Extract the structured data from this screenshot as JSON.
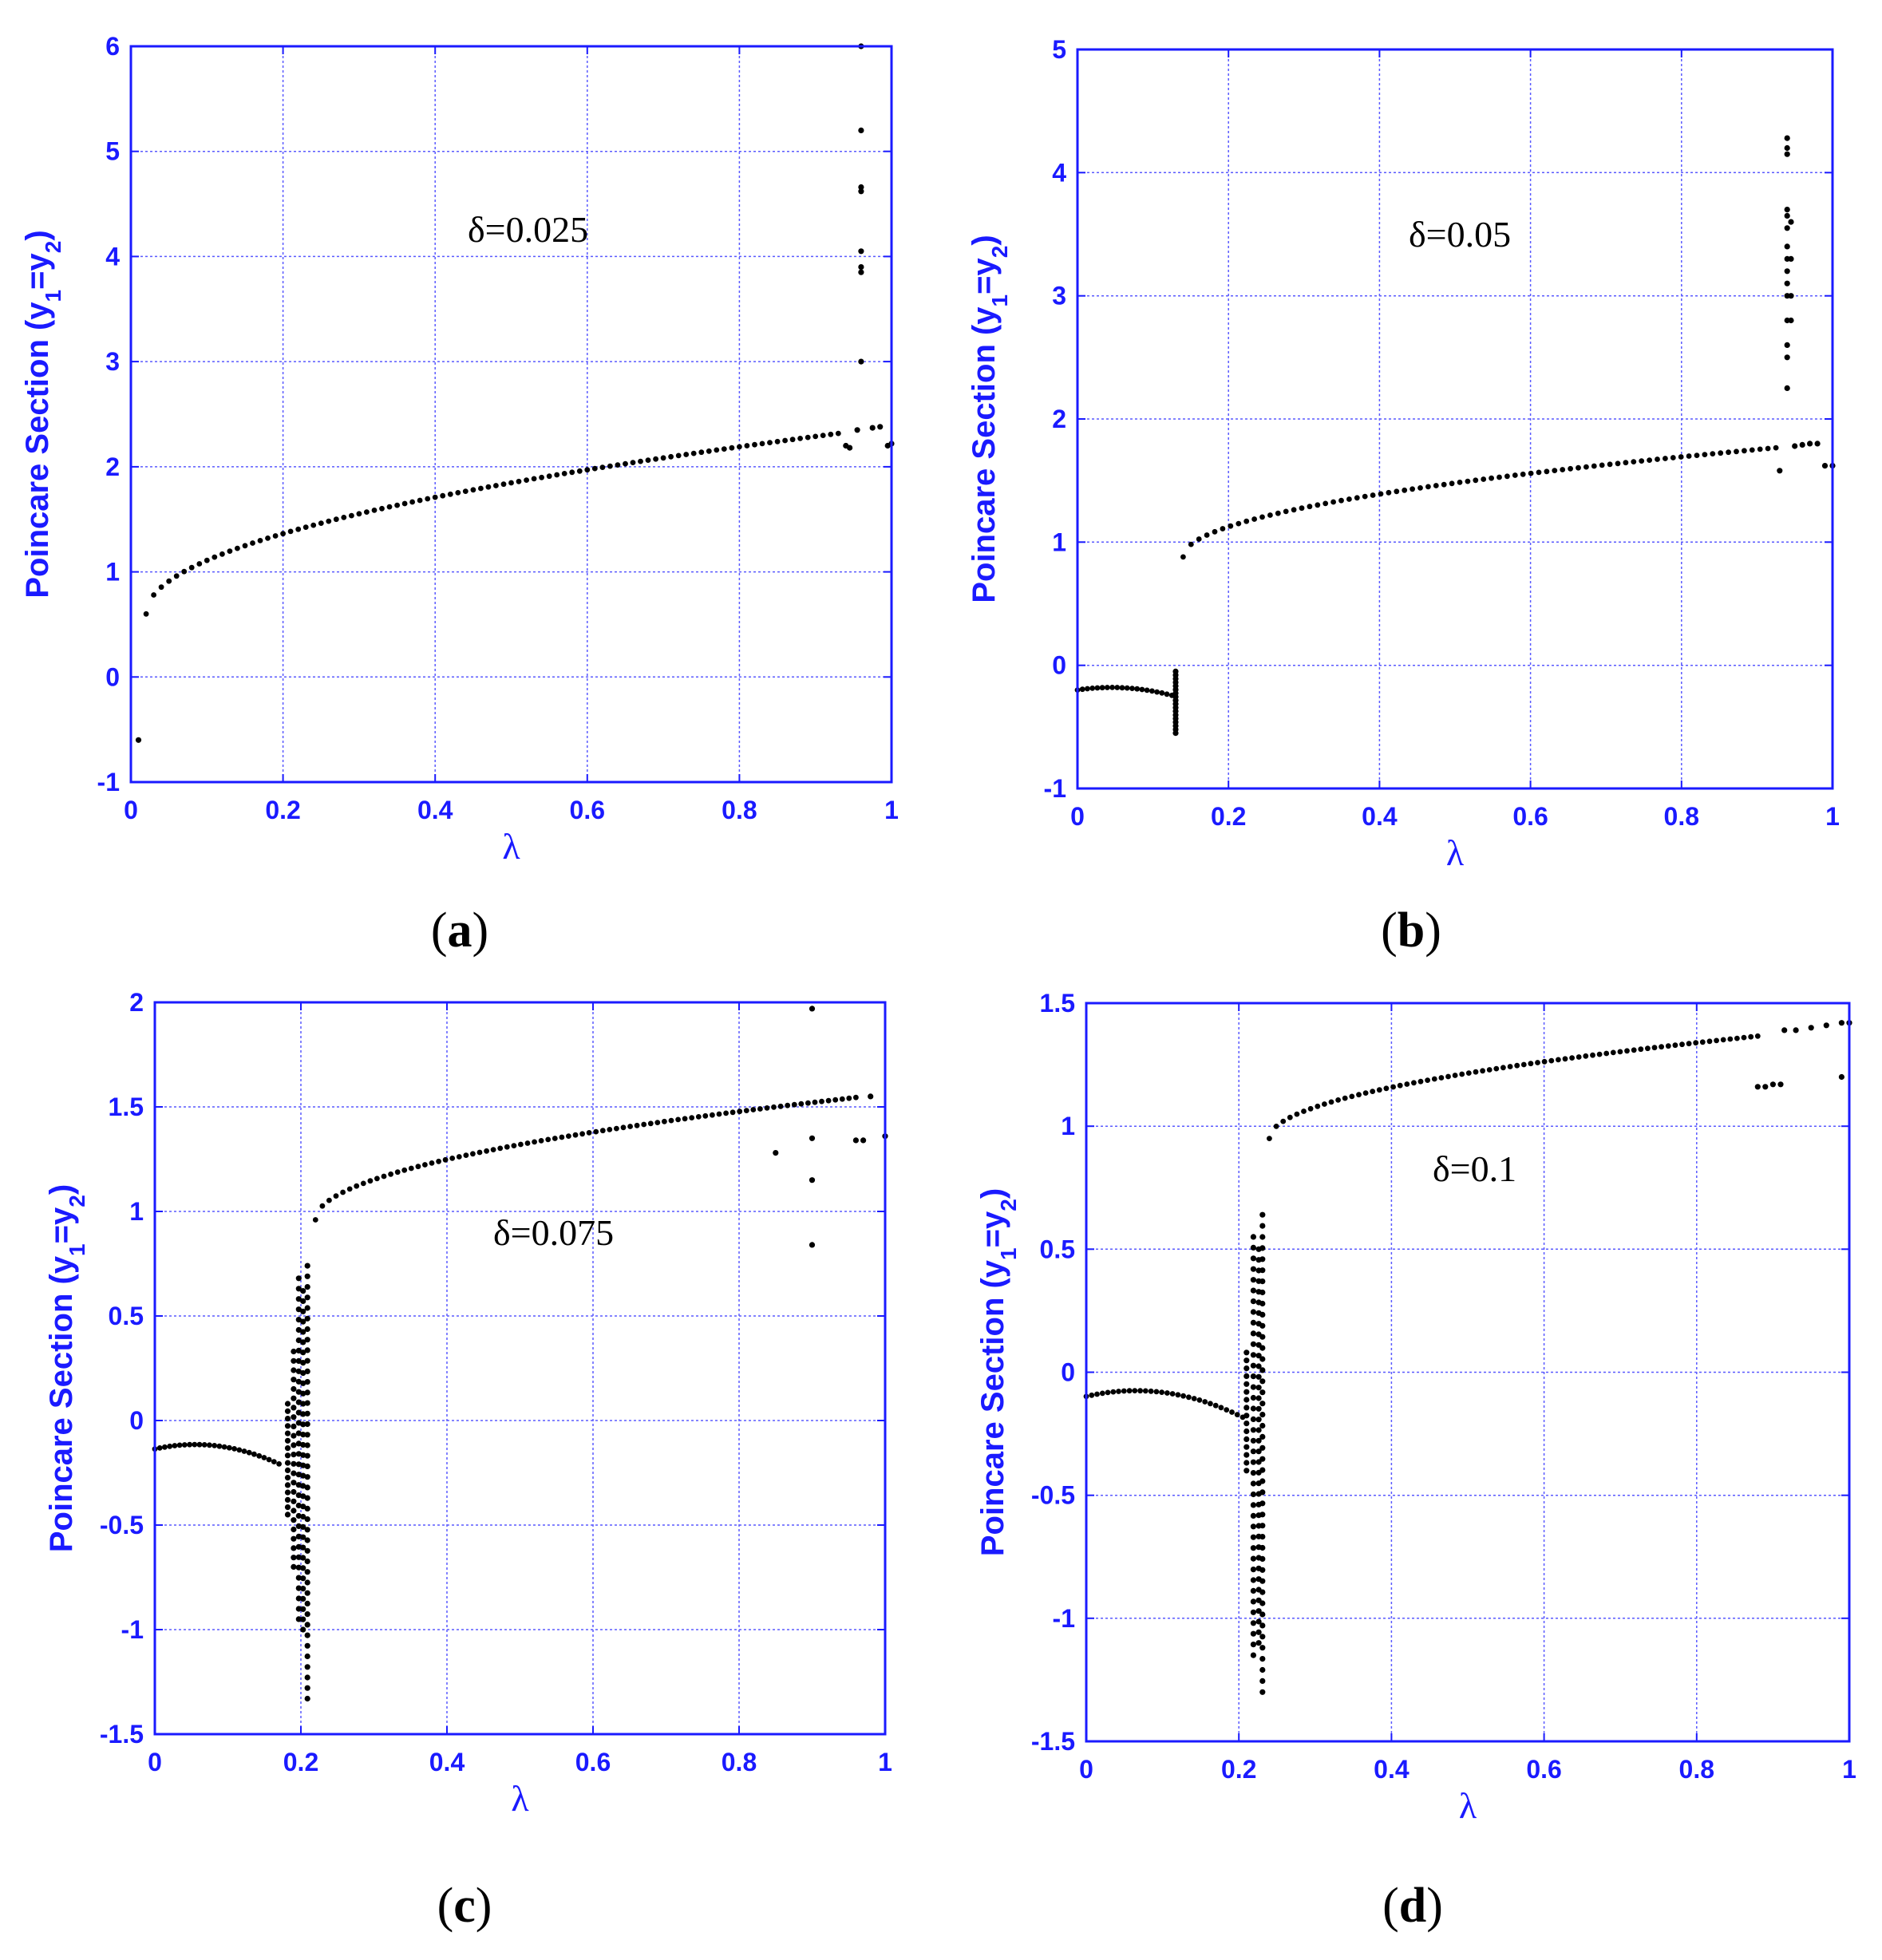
{
  "chart_data": [
    {
      "type": "scatter",
      "panel": "a",
      "caption": "(a)",
      "caption_open": "(",
      "caption_letter": "a",
      "caption_close": ")",
      "annotation": "δ=0.025",
      "xlabel": "λ",
      "ylabel": "Poincare Section (y1=y2)",
      "ylabel_parts": {
        "main": "Poincare Section (y",
        "s1": "1",
        "mid": "=y",
        "s2": "2",
        "end": ")"
      },
      "xlim": [
        0,
        1
      ],
      "ylim": [
        -1,
        6
      ],
      "xticks": [
        0,
        0.2,
        0.4,
        0.6,
        0.8,
        1
      ],
      "xtick_labels": [
        "0",
        "0.2",
        "0.4",
        "0.6",
        "0.8",
        "1"
      ],
      "yticks": [
        -1,
        0,
        1,
        2,
        3,
        4,
        5,
        6
      ],
      "ytick_labels": [
        "-1",
        "0",
        "1",
        "2",
        "3",
        "4",
        "5",
        "6"
      ],
      "grid": true,
      "main_branch": {
        "x_start": 0.02,
        "x_end": 0.93,
        "n": 92,
        "y_fn": "sqrt",
        "y0": 0.6,
        "coef": 1.8,
        "offset": 0.02
      },
      "points": [
        [
          0.01,
          -0.6
        ],
        [
          0.94,
          2.2
        ],
        [
          0.945,
          2.18
        ],
        [
          0.955,
          2.35
        ],
        [
          0.96,
          3.0
        ],
        [
          0.96,
          3.85
        ],
        [
          0.96,
          3.9
        ],
        [
          0.96,
          4.05
        ],
        [
          0.96,
          4.62
        ],
        [
          0.96,
          4.66
        ],
        [
          0.96,
          5.2
        ],
        [
          0.96,
          6.0
        ],
        [
          0.975,
          2.37
        ],
        [
          0.985,
          2.38
        ],
        [
          0.995,
          2.2
        ],
        [
          1.0,
          2.22
        ]
      ]
    },
    {
      "type": "scatter",
      "panel": "b",
      "caption": "(b)",
      "caption_open": "(",
      "caption_letter": "b",
      "caption_close": ")",
      "annotation": "δ=0.05",
      "xlabel": "λ",
      "ylabel": "Poincare Section (y1=y2)",
      "ylabel_parts": {
        "main": "Poincare Section (y",
        "s1": "1",
        "mid": "=y",
        "s2": "2",
        "end": ")"
      },
      "xlim": [
        0,
        1
      ],
      "ylim": [
        -1,
        5
      ],
      "xticks": [
        0,
        0.2,
        0.4,
        0.6,
        0.8,
        1
      ],
      "xtick_labels": [
        "0",
        "0.2",
        "0.4",
        "0.6",
        "0.8",
        "1"
      ],
      "yticks": [
        -1,
        0,
        1,
        2,
        3,
        4,
        5
      ],
      "ytick_labels": [
        "-1",
        "0",
        "1",
        "2",
        "3",
        "4",
        "5"
      ],
      "grid": true,
      "low_branch": {
        "x_start": 0.0,
        "x_end": 0.125,
        "n": 20,
        "y_fn": "parabola",
        "peak_x": 0.045,
        "peak_y": -0.18,
        "curv": 10.0
      },
      "chaos_bands": [
        {
          "x": 0.13,
          "y_min": -0.55,
          "y_max": -0.05,
          "n": 18
        }
      ],
      "main_branch": {
        "x_start": 0.14,
        "x_end": 0.925,
        "n": 76,
        "y_fn": "sqrt",
        "y0": 0.88,
        "coef": 1.0,
        "offset": 0.14
      },
      "points": [
        [
          0.93,
          1.58
        ],
        [
          0.94,
          2.25
        ],
        [
          0.94,
          2.5
        ],
        [
          0.94,
          2.6
        ],
        [
          0.94,
          2.8
        ],
        [
          0.94,
          3.0
        ],
        [
          0.94,
          3.1
        ],
        [
          0.94,
          3.2
        ],
        [
          0.94,
          3.3
        ],
        [
          0.94,
          3.4
        ],
        [
          0.94,
          3.55
        ],
        [
          0.94,
          3.65
        ],
        [
          0.94,
          3.7
        ],
        [
          0.94,
          4.15
        ],
        [
          0.94,
          4.2
        ],
        [
          0.94,
          4.28
        ],
        [
          0.945,
          2.8
        ],
        [
          0.945,
          3.0
        ],
        [
          0.945,
          3.3
        ],
        [
          0.945,
          3.6
        ],
        [
          0.95,
          1.78
        ],
        [
          0.96,
          1.79
        ],
        [
          0.97,
          1.8
        ],
        [
          0.98,
          1.8
        ],
        [
          0.99,
          1.62
        ],
        [
          1.0,
          1.62
        ]
      ]
    },
    {
      "type": "scatter",
      "panel": "c",
      "caption": "(c)",
      "caption_open": "(",
      "caption_letter": "c",
      "caption_close": ")",
      "annotation": "δ=0.075",
      "xlabel": "λ",
      "ylabel": "Poincare Section (y1=y2)",
      "ylabel_parts": {
        "main": "Poincare Section (y",
        "s1": "1",
        "mid": "=y",
        "s2": "2",
        "end": ")"
      },
      "xlim": [
        0,
        1
      ],
      "ylim": [
        -1.5,
        2
      ],
      "xticks": [
        0,
        0.2,
        0.4,
        0.6,
        0.8,
        1
      ],
      "xtick_labels": [
        "0",
        "0.2",
        "0.4",
        "0.6",
        "0.8",
        "1"
      ],
      "yticks": [
        -1.5,
        -1,
        -0.5,
        0,
        0.5,
        1,
        1.5,
        2
      ],
      "ytick_labels": [
        "-1.5",
        "-1",
        "-0.5",
        "0",
        "0.5",
        "1",
        "1.5",
        "2"
      ],
      "grid": true,
      "low_branch": {
        "x_start": 0.0,
        "x_end": 0.17,
        "n": 26,
        "y_fn": "parabola",
        "peak_x": 0.055,
        "peak_y": -0.115,
        "curv": 7.0
      },
      "chaos_bands": [
        {
          "x": 0.182,
          "y_min": -0.45,
          "y_max": 0.08,
          "n": 16
        },
        {
          "x": 0.19,
          "y_min": -0.7,
          "y_max": 0.33,
          "n": 24
        },
        {
          "x": 0.197,
          "y_min": -0.95,
          "y_max": 0.68,
          "n": 34
        },
        {
          "x": 0.203,
          "y_min": -1.0,
          "y_max": 0.62,
          "n": 34
        },
        {
          "x": 0.209,
          "y_min": -1.33,
          "y_max": 0.74,
          "n": 42
        }
      ],
      "main_branch": {
        "x_start": 0.22,
        "x_end": 0.96,
        "n": 80,
        "y_fn": "sqrt",
        "y0": 0.96,
        "coef": 0.68,
        "offset": 0.22
      },
      "points": [
        [
          0.85,
          1.28
        ],
        [
          0.9,
          0.84
        ],
        [
          0.9,
          1.15
        ],
        [
          0.9,
          1.35
        ],
        [
          0.9,
          1.97
        ],
        [
          0.96,
          1.34
        ],
        [
          0.97,
          1.34
        ],
        [
          0.98,
          1.55
        ],
        [
          1.0,
          1.36
        ]
      ]
    },
    {
      "type": "scatter",
      "panel": "d",
      "caption": "(d)",
      "caption_open": "(",
      "caption_letter": "d",
      "caption_close": ")",
      "annotation": "δ=0.1",
      "xlabel": "λ",
      "ylabel": "Poincare Section (y1=y2)",
      "ylabel_parts": {
        "main": "Poincare Section (y",
        "s1": "1",
        "mid": "=y",
        "s2": "2",
        "end": ")"
      },
      "xlim": [
        0,
        1
      ],
      "ylim": [
        -1.5,
        1.5
      ],
      "xticks": [
        0,
        0.2,
        0.4,
        0.6,
        0.8,
        1
      ],
      "xtick_labels": [
        "0",
        "0.2",
        "0.4",
        "0.6",
        "0.8",
        "1"
      ],
      "yticks": [
        -1.5,
        -1,
        -0.5,
        0,
        0.5,
        1,
        1.5
      ],
      "ytick_labels": [
        "-1.5",
        "-1",
        "-0.5",
        "0",
        "0.5",
        "1",
        "1.5"
      ],
      "grid": true,
      "low_branch": {
        "x_start": 0.0,
        "x_end": 0.205,
        "n": 30,
        "y_fn": "parabola",
        "peak_x": 0.065,
        "peak_y": -0.075,
        "curv": 5.5
      },
      "chaos_bands": [
        {
          "x": 0.21,
          "y_min": -0.4,
          "y_max": 0.08,
          "n": 16
        },
        {
          "x": 0.219,
          "y_min": -1.15,
          "y_max": 0.55,
          "n": 40
        },
        {
          "x": 0.226,
          "y_min": -1.1,
          "y_max": 0.5,
          "n": 38
        },
        {
          "x": 0.231,
          "y_min": -1.3,
          "y_max": 0.64,
          "n": 44
        }
      ],
      "main_branch": {
        "x_start": 0.24,
        "x_end": 0.88,
        "n": 72,
        "y_fn": "sqrt",
        "y0": 0.95,
        "coef": 0.52,
        "offset": 0.24
      },
      "points": [
        [
          0.88,
          1.16
        ],
        [
          0.89,
          1.16
        ],
        [
          0.9,
          1.17
        ],
        [
          0.91,
          1.17
        ],
        [
          0.915,
          1.39
        ],
        [
          0.93,
          1.39
        ],
        [
          0.95,
          1.4
        ],
        [
          0.97,
          1.41
        ],
        [
          0.99,
          1.42
        ],
        [
          0.99,
          1.2
        ],
        [
          1.0,
          1.42
        ]
      ]
    }
  ]
}
